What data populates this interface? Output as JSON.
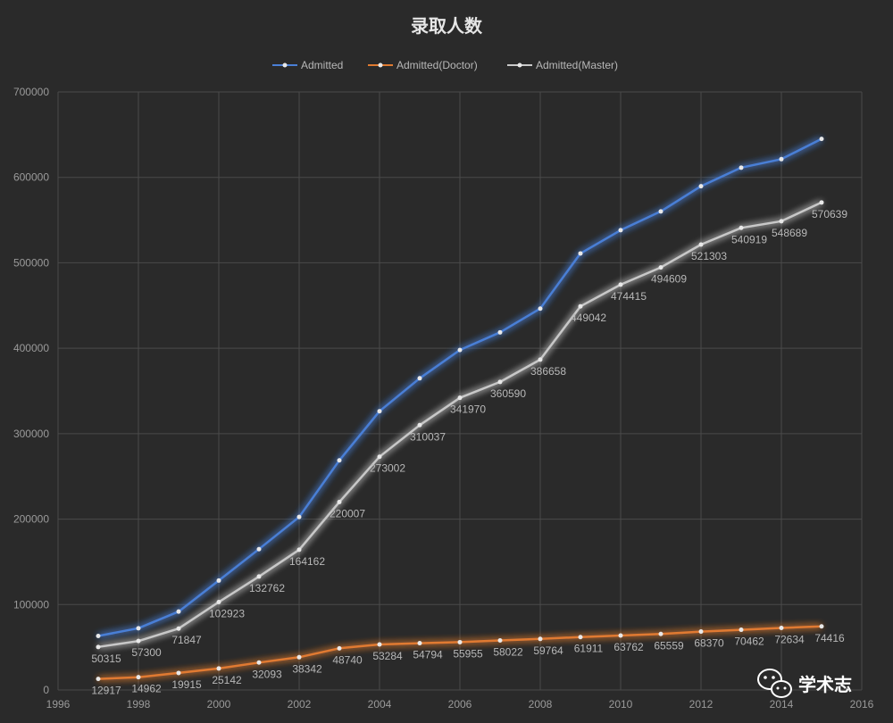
{
  "chart_data": {
    "type": "line",
    "title": "录取人数",
    "xlabel": "",
    "ylabel": "",
    "xlim": [
      1996,
      2016
    ],
    "ylim": [
      0,
      700000
    ],
    "x_ticks": [
      1996,
      1998,
      2000,
      2002,
      2004,
      2006,
      2008,
      2010,
      2012,
      2014,
      2016
    ],
    "y_ticks": [
      0,
      100000,
      200000,
      300000,
      400000,
      500000,
      600000,
      700000
    ],
    "grid": true,
    "legend_position": "top",
    "x": [
      1997,
      1998,
      1999,
      2000,
      2001,
      2002,
      2003,
      2004,
      2005,
      2006,
      2007,
      2008,
      2009,
      2010,
      2011,
      2012,
      2013,
      2014,
      2015
    ],
    "series": [
      {
        "name": "Admitted",
        "color": "#4a7fd6",
        "show_labels": false,
        "values": [
          63231,
          72262,
          91762,
          128065,
          164855,
          202504,
          268747,
          326286,
          364831,
          397925,
          418612,
          446422,
          510953,
          538177,
          560168,
          589673,
          611381,
          621323,
          645055
        ]
      },
      {
        "name": "Admitted(Doctor)",
        "color": "#e07a30",
        "show_labels": true,
        "values": [
          12917,
          14962,
          19915,
          25142,
          32093,
          38342,
          48740,
          53284,
          54794,
          55955,
          58022,
          59764,
          61911,
          63762,
          65559,
          68370,
          70462,
          72634,
          74416
        ]
      },
      {
        "name": "Admitted(Master)",
        "color": "#c8c8c8",
        "show_labels": true,
        "values": [
          50315,
          57300,
          71847,
          102923,
          132762,
          164162,
          220007,
          273002,
          310037,
          341970,
          360590,
          386658,
          449042,
          474415,
          494609,
          521303,
          540919,
          548689,
          570639
        ]
      }
    ]
  },
  "watermark": {
    "text": "学术志",
    "icon": "wechat-icon"
  }
}
